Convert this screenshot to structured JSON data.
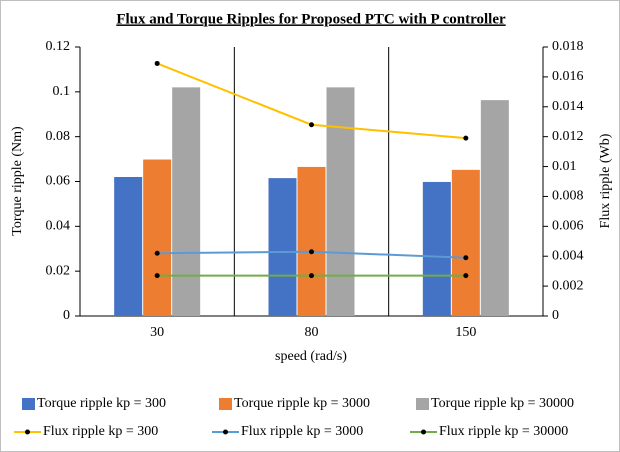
{
  "chart_data": {
    "type": "bar_line",
    "title": "Flux and Torque Ripples for Proposed PTC with P controller",
    "xlabel": "speed (rad/s)",
    "ylabel": "Torque ripple (Nm)",
    "y2label": "Flux ripple (Wb)",
    "categories": [
      "30",
      "80",
      "150"
    ],
    "ylim": [
      0,
      0.12
    ],
    "yticks": [
      0,
      0.02,
      0.04,
      0.06,
      0.08,
      0.1,
      0.12
    ],
    "y2lim": [
      0,
      0.018
    ],
    "y2ticks": [
      0,
      0.002,
      0.004,
      0.006,
      0.008,
      0.01,
      0.012,
      0.014,
      0.016,
      0.018
    ],
    "legend": "bottom",
    "series": [
      {
        "name": "Torque ripple kp = 300",
        "kind": "bar",
        "color": "#4472c4",
        "values": [
          0.062,
          0.0615,
          0.0598
        ]
      },
      {
        "name": "Torque ripple kp = 3000",
        "kind": "bar",
        "color": "#ed7d31",
        "values": [
          0.0698,
          0.0665,
          0.0652
        ]
      },
      {
        "name": "Torque ripple kp = 30000",
        "kind": "bar",
        "color": "#a5a5a5",
        "values": [
          0.102,
          0.102,
          0.0963
        ]
      },
      {
        "name": "Flux ripple kp = 300",
        "kind": "line",
        "axis": "y2",
        "color": "#ffc000",
        "values": [
          0.0169,
          0.0128,
          0.0119
        ]
      },
      {
        "name": "Flux ripple kp = 3000",
        "kind": "line",
        "axis": "y2",
        "color": "#5b9bd5",
        "values": [
          0.0042,
          0.0043,
          0.0039
        ]
      },
      {
        "name": "Flux ripple kp = 30000",
        "kind": "line",
        "axis": "y2",
        "color": "#70ad47",
        "values": [
          0.0027,
          0.0027,
          0.0027
        ]
      }
    ]
  }
}
